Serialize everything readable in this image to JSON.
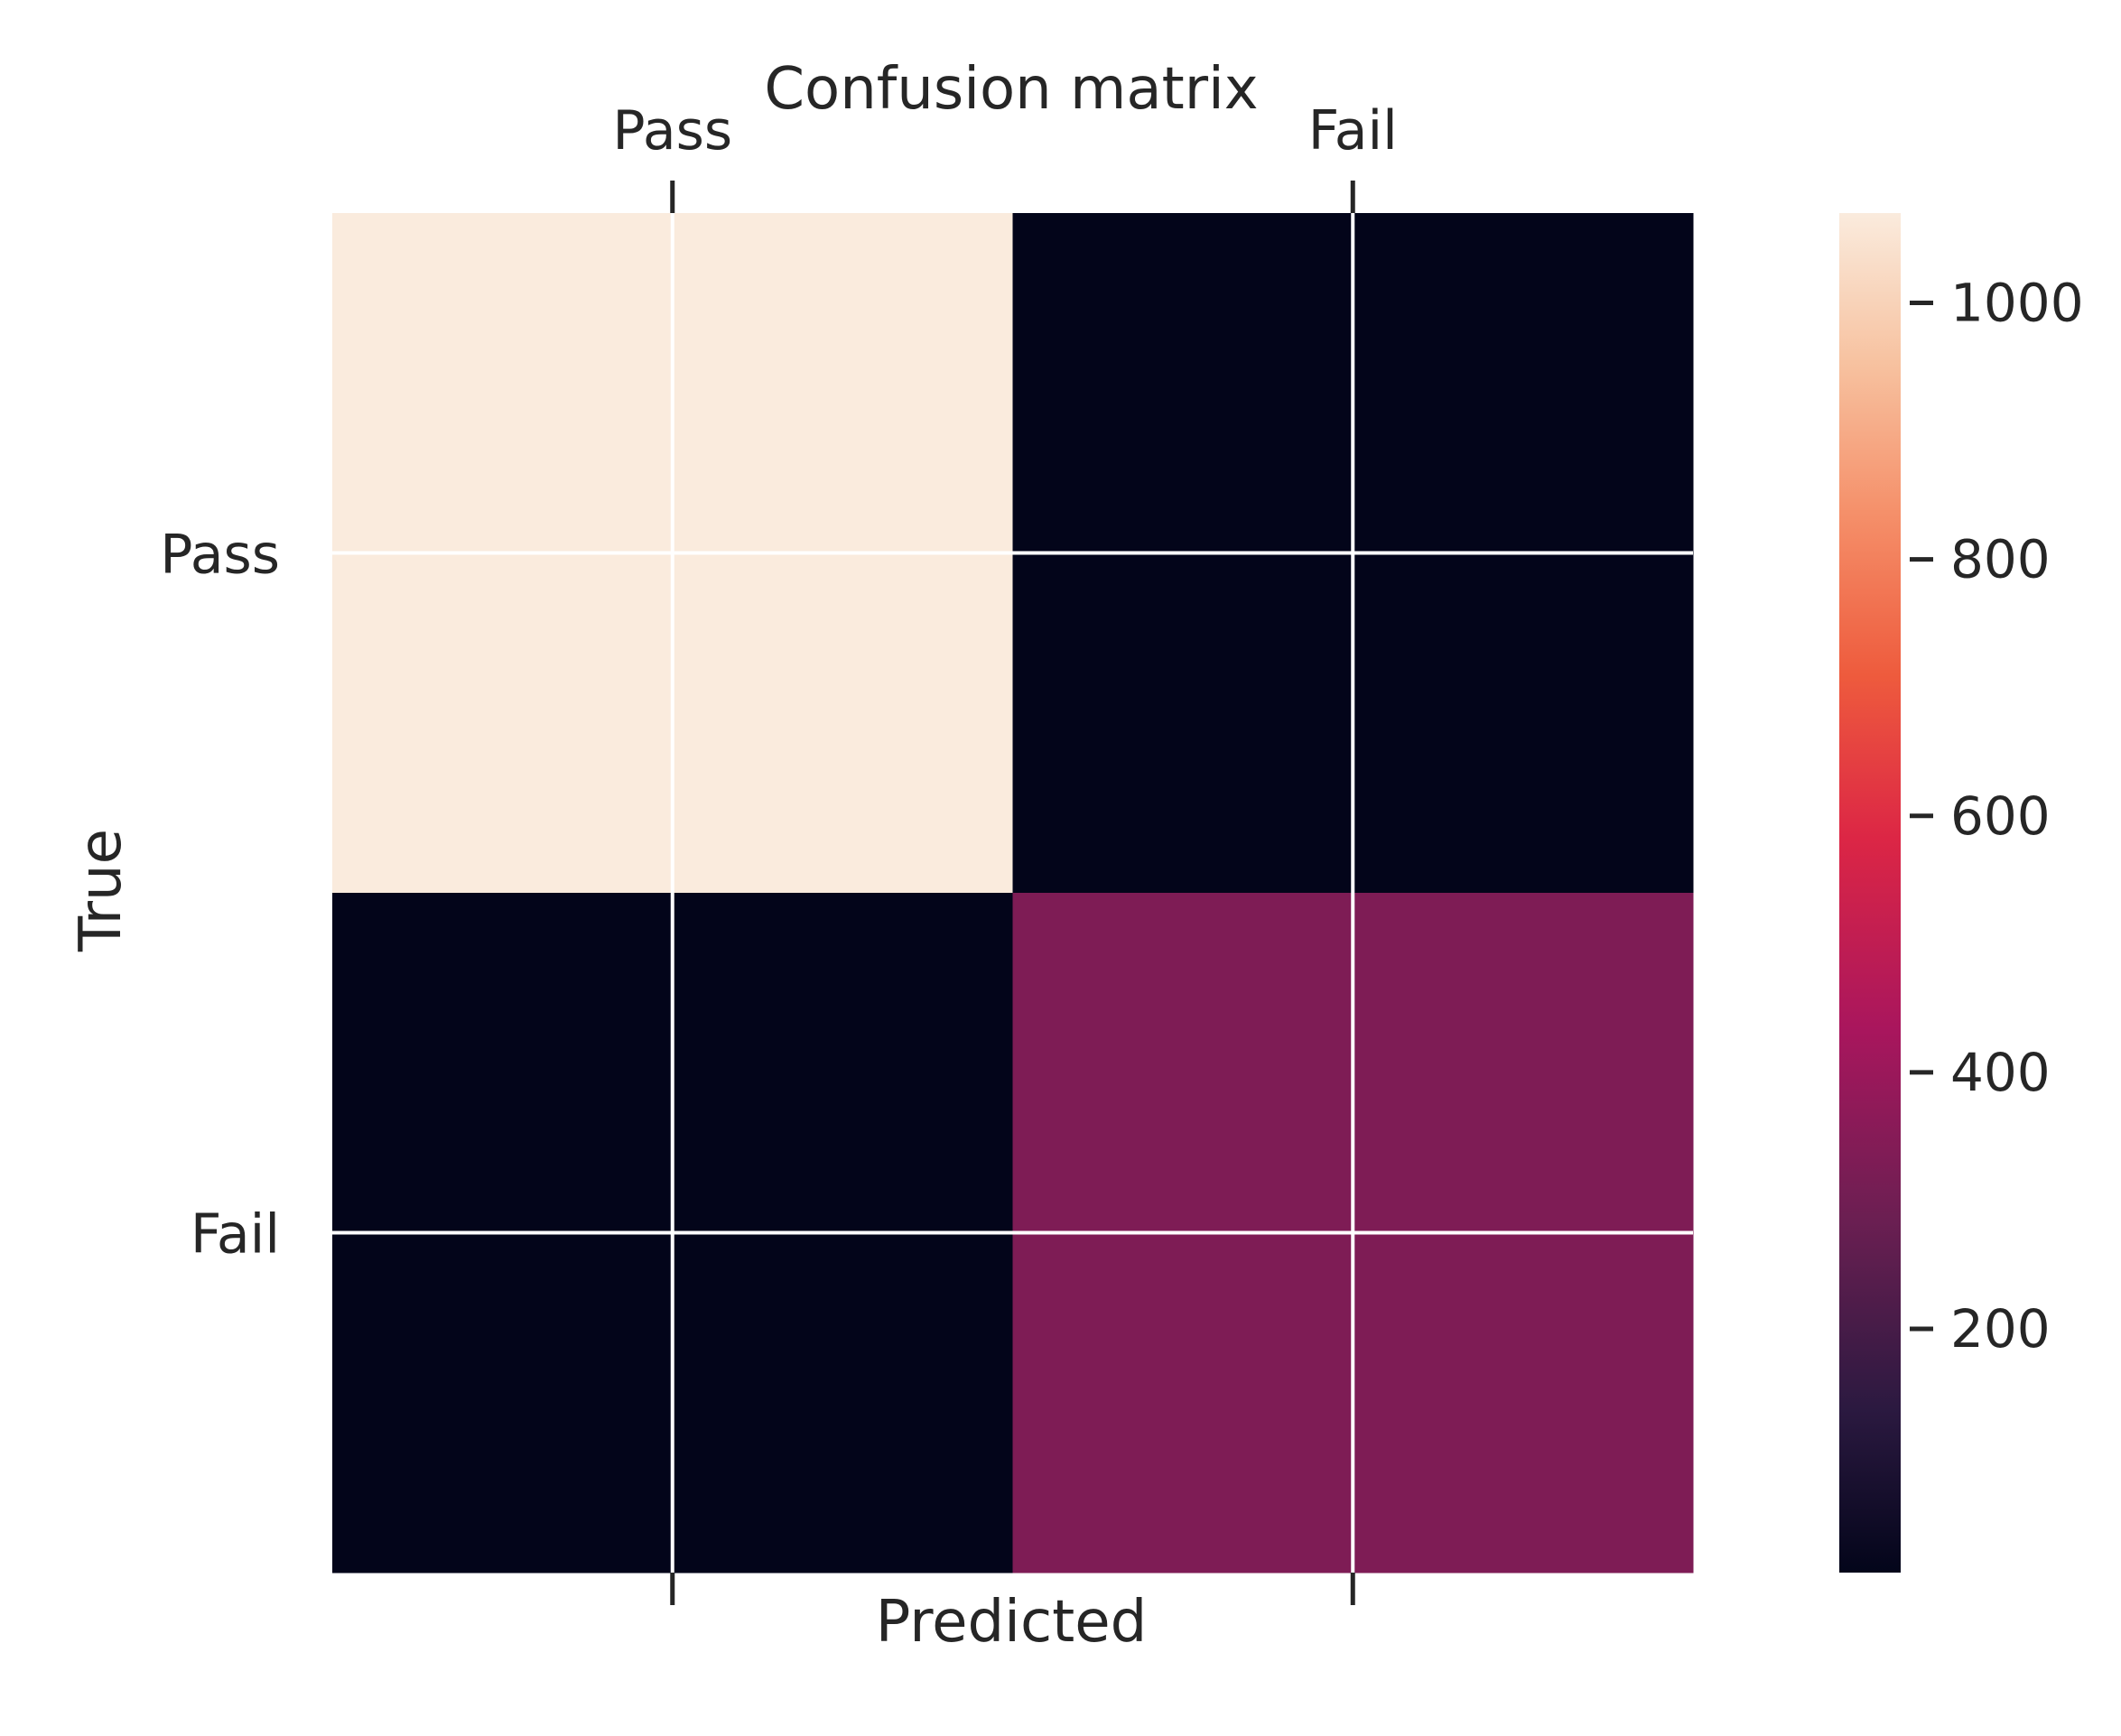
{
  "chart_data": {
    "type": "heatmap",
    "title": "Confusion matrix",
    "xlabel": "Predicted",
    "ylabel": "True",
    "x_categories": [
      "Pass",
      "Fail"
    ],
    "y_categories": [
      "Pass",
      "Fail"
    ],
    "values": [
      [
        1070,
        10
      ],
      [
        10,
        330
      ]
    ],
    "colorbar": {
      "range": [
        10,
        1070
      ],
      "ticks": [
        200,
        400,
        600,
        800,
        1000
      ],
      "colormap": "rocket"
    },
    "grid": true
  }
}
